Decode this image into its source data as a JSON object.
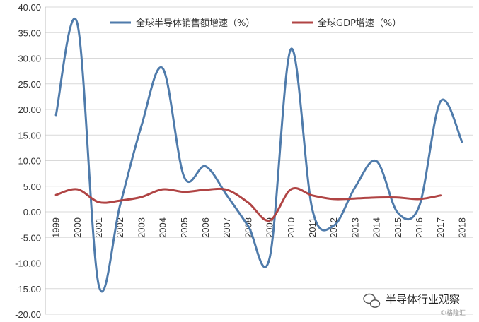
{
  "chart_data": {
    "type": "line",
    "categories": [
      "1999",
      "2000",
      "2001",
      "2002",
      "2003",
      "2004",
      "2005",
      "2006",
      "2007",
      "2008",
      "2009",
      "2010",
      "2011",
      "2012",
      "2013",
      "2014",
      "2015",
      "2016",
      "2017",
      "2018"
    ],
    "ylim": [
      -20,
      40
    ],
    "ytick_labels": [
      "40.00",
      "35.00",
      "30.00",
      "25.00",
      "20.00",
      "15.00",
      "10.00",
      "5.00",
      "0.00",
      "-5.00",
      "-10.00",
      "-15.00",
      "-20.00"
    ],
    "grid": true,
    "legend_position": "top",
    "series": [
      {
        "name": "全球半导体销售额增速（%）",
        "color": "#4f7bab",
        "values": [
          18.9,
          36.8,
          -14.3,
          1.3,
          16.8,
          28.0,
          6.8,
          8.9,
          3.2,
          -2.8,
          -9.0,
          31.8,
          0.4,
          -2.7,
          4.8,
          9.9,
          -0.2,
          1.1,
          21.6,
          13.7
        ]
      },
      {
        "name": "全球GDP增速（%）",
        "color": "#b04444",
        "values": [
          3.3,
          4.4,
          1.9,
          2.2,
          2.9,
          4.4,
          3.9,
          4.3,
          4.3,
          1.8,
          -1.7,
          4.4,
          3.2,
          2.5,
          2.6,
          2.8,
          2.8,
          2.5,
          3.2,
          null
        ]
      }
    ]
  },
  "watermark": {
    "text": "半导体行业观察",
    "source": "©格隆汇",
    "icon": "wechat-icon"
  }
}
